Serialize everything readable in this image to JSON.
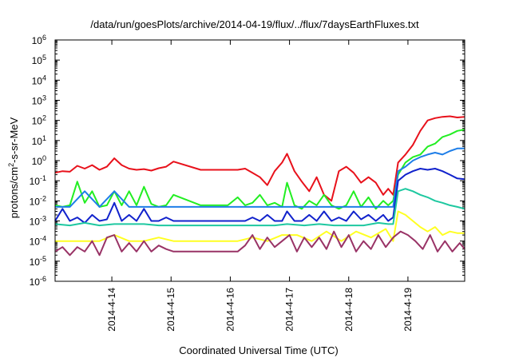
{
  "chart_data": {
    "type": "line",
    "title": "/data/run/goesPlots/archive/2014-04-19/flux/../flux/7daysEarthFluxes.txt",
    "xlabel": "Coordinated Universal Time (UTC)",
    "ylabel_main": "protons/cm",
    "ylabel_sup": "2",
    "ylabel_rest": "-s-sr-MeV",
    "y_scale": "log",
    "ylim_exp": [
      -6,
      6
    ],
    "xlim": [
      "2014-04-13T01:00",
      "2014-04-19T23:00"
    ],
    "x_ticks": [
      {
        "x": "2014-04-14T00:00",
        "label": "2014-4-14"
      },
      {
        "x": "2014-04-15T00:00",
        "label": "2014-4-15"
      },
      {
        "x": "2014-04-16T00:00",
        "label": "2014-4-16"
      },
      {
        "x": "2014-04-17T00:00",
        "label": "2014-4-17"
      },
      {
        "x": "2014-04-18T00:00",
        "label": "2014-4-18"
      },
      {
        "x": "2014-04-19T00:00",
        "label": "2014-4-19"
      }
    ],
    "y_ticks": [
      {
        "exp": -6,
        "label": "10",
        "sup": "-6"
      },
      {
        "exp": -5,
        "label": "10",
        "sup": "-5"
      },
      {
        "exp": -4,
        "label": "10",
        "sup": "-4"
      },
      {
        "exp": -3,
        "label": "10",
        "sup": "-3"
      },
      {
        "exp": -2,
        "label": "10",
        "sup": "-2"
      },
      {
        "exp": -1,
        "label": "10",
        "sup": "-1"
      },
      {
        "exp": 0,
        "label": "10",
        "sup": "0"
      },
      {
        "exp": 1,
        "label": "10",
        "sup": "1"
      },
      {
        "exp": 2,
        "label": "10",
        "sup": "2"
      },
      {
        "exp": 3,
        "label": "10",
        "sup": "3"
      },
      {
        "exp": 4,
        "label": "10",
        "sup": "4"
      },
      {
        "exp": 5,
        "label": "10",
        "sup": "5"
      },
      {
        "exp": 6,
        "label": "10",
        "sup": "6"
      }
    ],
    "grid": false,
    "legend": "none",
    "series": [
      {
        "color": "#e8111b",
        "x": [
          "2014-04-13T01:00",
          "2014-04-13T04:00",
          "2014-04-13T07:00",
          "2014-04-13T10:00",
          "2014-04-13T13:00",
          "2014-04-13T16:00",
          "2014-04-13T19:00",
          "2014-04-13T22:00",
          "2014-04-14T01:00",
          "2014-04-14T04:00",
          "2014-04-14T07:00",
          "2014-04-14T10:00",
          "2014-04-14T13:00",
          "2014-04-14T16:00",
          "2014-04-14T19:00",
          "2014-04-14T22:00",
          "2014-04-15T01:00",
          "2014-04-15T12:00",
          "2014-04-15T23:00",
          "2014-04-16T03:00",
          "2014-04-16T06:00",
          "2014-04-16T09:00",
          "2014-04-16T12:00",
          "2014-04-16T15:00",
          "2014-04-16T18:00",
          "2014-04-16T21:00",
          "2014-04-16T23:00",
          "2014-04-17T02:00",
          "2014-04-17T05:00",
          "2014-04-17T08:00",
          "2014-04-17T11:00",
          "2014-04-17T14:00",
          "2014-04-17T17:00",
          "2014-04-17T20:00",
          "2014-04-17T23:00",
          "2014-04-18T02:00",
          "2014-04-18T05:00",
          "2014-04-18T08:00",
          "2014-04-18T11:00",
          "2014-04-18T14:00",
          "2014-04-18T16:00",
          "2014-04-18T18:00",
          "2014-04-18T20:00",
          "2014-04-18T23:00",
          "2014-04-19T02:00",
          "2014-04-19T05:00",
          "2014-04-19T08:00",
          "2014-04-19T11:00",
          "2014-04-19T14:00",
          "2014-04-19T17:00",
          "2014-04-19T20:00",
          "2014-04-19T23:00"
        ],
        "values": [
          0.25,
          0.3,
          0.28,
          0.55,
          0.4,
          0.6,
          0.35,
          0.5,
          1.3,
          0.6,
          0.4,
          0.35,
          0.38,
          0.32,
          0.42,
          0.5,
          0.9,
          0.35,
          0.35,
          0.35,
          0.4,
          0.25,
          0.15,
          0.06,
          0.3,
          0.8,
          2.2,
          0.3,
          0.09,
          0.03,
          0.15,
          0.02,
          0.01,
          0.3,
          0.5,
          0.25,
          0.08,
          0.15,
          0.08,
          0.02,
          0.04,
          0.02,
          0.8,
          2,
          6,
          30,
          100,
          130,
          150,
          160,
          140,
          150
        ]
      },
      {
        "color": "#22ee22",
        "x": [
          "2014-04-13T01:00",
          "2014-04-13T04:00",
          "2014-04-13T07:00",
          "2014-04-13T10:00",
          "2014-04-13T13:00",
          "2014-04-13T16:00",
          "2014-04-13T19:00",
          "2014-04-13T22:00",
          "2014-04-14T01:00",
          "2014-04-14T04:00",
          "2014-04-14T07:00",
          "2014-04-14T10:00",
          "2014-04-14T13:00",
          "2014-04-14T16:00",
          "2014-04-14T19:00",
          "2014-04-14T22:00",
          "2014-04-15T01:00",
          "2014-04-15T12:00",
          "2014-04-15T23:00",
          "2014-04-16T03:00",
          "2014-04-16T06:00",
          "2014-04-16T09:00",
          "2014-04-16T12:00",
          "2014-04-16T15:00",
          "2014-04-16T18:00",
          "2014-04-16T21:00",
          "2014-04-16T23:00",
          "2014-04-17T02:00",
          "2014-04-17T05:00",
          "2014-04-17T08:00",
          "2014-04-17T11:00",
          "2014-04-17T14:00",
          "2014-04-17T17:00",
          "2014-04-17T20:00",
          "2014-04-17T23:00",
          "2014-04-18T02:00",
          "2014-04-18T05:00",
          "2014-04-18T08:00",
          "2014-04-18T11:00",
          "2014-04-18T14:00",
          "2014-04-18T16:00",
          "2014-04-18T18:00",
          "2014-04-18T20:00",
          "2014-04-18T23:00",
          "2014-04-19T02:00",
          "2014-04-19T05:00",
          "2014-04-19T08:00",
          "2014-04-19T11:00",
          "2014-04-19T14:00",
          "2014-04-19T17:00",
          "2014-04-19T20:00",
          "2014-04-19T23:00"
        ],
        "values": [
          0.006,
          0.005,
          0.006,
          0.09,
          0.008,
          0.03,
          0.005,
          0.006,
          0.03,
          0.006,
          0.03,
          0.006,
          0.05,
          0.007,
          0.005,
          0.006,
          0.02,
          0.006,
          0.006,
          0.015,
          0.006,
          0.008,
          0.02,
          0.006,
          0.008,
          0.005,
          0.08,
          0.006,
          0.004,
          0.01,
          0.006,
          0.02,
          0.006,
          0.004,
          0.006,
          0.03,
          0.005,
          0.015,
          0.004,
          0.01,
          0.006,
          0.01,
          0.2,
          0.8,
          1.5,
          2,
          5,
          7,
          15,
          20,
          30,
          35
        ]
      },
      {
        "color": "#1e7ee8",
        "x": [
          "2014-04-13T01:00",
          "2014-04-13T07:00",
          "2014-04-13T13:00",
          "2014-04-13T19:00",
          "2014-04-14T01:00",
          "2014-04-14T07:00",
          "2014-04-14T13:00",
          "2014-04-14T19:00",
          "2014-04-15T01:00",
          "2014-04-15T12:00",
          "2014-04-15T23:00",
          "2014-04-16T06:00",
          "2014-04-16T12:00",
          "2014-04-16T18:00",
          "2014-04-16T23:00",
          "2014-04-17T06:00",
          "2014-04-17T12:00",
          "2014-04-17T18:00",
          "2014-04-17T23:00",
          "2014-04-18T06:00",
          "2014-04-18T12:00",
          "2014-04-18T16:00",
          "2014-04-18T18:00",
          "2014-04-18T20:00",
          "2014-04-18T23:00",
          "2014-04-19T02:00",
          "2014-04-19T05:00",
          "2014-04-19T08:00",
          "2014-04-19T11:00",
          "2014-04-19T14:00",
          "2014-04-19T17:00",
          "2014-04-19T20:00",
          "2014-04-19T23:00"
        ],
        "values": [
          0.005,
          0.005,
          0.03,
          0.005,
          0.03,
          0.005,
          0.005,
          0.005,
          0.005,
          0.005,
          0.005,
          0.005,
          0.005,
          0.005,
          0.005,
          0.005,
          0.005,
          0.005,
          0.005,
          0.005,
          0.005,
          0.005,
          0.005,
          0.3,
          0.5,
          1,
          1.5,
          2,
          2.5,
          2,
          3,
          4,
          4
        ]
      },
      {
        "color": "#1122cc",
        "x": [
          "2014-04-13T01:00",
          "2014-04-13T04:00",
          "2014-04-13T07:00",
          "2014-04-13T10:00",
          "2014-04-13T13:00",
          "2014-04-13T16:00",
          "2014-04-13T19:00",
          "2014-04-13T22:00",
          "2014-04-14T01:00",
          "2014-04-14T04:00",
          "2014-04-14T07:00",
          "2014-04-14T10:00",
          "2014-04-14T13:00",
          "2014-04-14T16:00",
          "2014-04-14T19:00",
          "2014-04-14T22:00",
          "2014-04-15T01:00",
          "2014-04-15T12:00",
          "2014-04-15T23:00",
          "2014-04-16T03:00",
          "2014-04-16T06:00",
          "2014-04-16T09:00",
          "2014-04-16T12:00",
          "2014-04-16T15:00",
          "2014-04-16T18:00",
          "2014-04-16T21:00",
          "2014-04-16T23:00",
          "2014-04-17T02:00",
          "2014-04-17T05:00",
          "2014-04-17T08:00",
          "2014-04-17T11:00",
          "2014-04-17T14:00",
          "2014-04-17T17:00",
          "2014-04-17T20:00",
          "2014-04-17T23:00",
          "2014-04-18T02:00",
          "2014-04-18T05:00",
          "2014-04-18T08:00",
          "2014-04-18T11:00",
          "2014-04-18T14:00",
          "2014-04-18T16:00",
          "2014-04-18T18:00",
          "2014-04-18T20:00",
          "2014-04-18T23:00",
          "2014-04-19T02:00",
          "2014-04-19T05:00",
          "2014-04-19T08:00",
          "2014-04-19T11:00",
          "2014-04-19T14:00",
          "2014-04-19T17:00",
          "2014-04-19T20:00",
          "2014-04-19T23:00"
        ],
        "values": [
          0.001,
          0.004,
          0.001,
          0.0015,
          0.0008,
          0.002,
          0.001,
          0.0012,
          0.008,
          0.001,
          0.002,
          0.001,
          0.004,
          0.001,
          0.001,
          0.0015,
          0.001,
          0.001,
          0.001,
          0.001,
          0.001,
          0.0015,
          0.001,
          0.002,
          0.001,
          0.001,
          0.003,
          0.001,
          0.001,
          0.002,
          0.001,
          0.003,
          0.001,
          0.0015,
          0.001,
          0.003,
          0.0012,
          0.002,
          0.001,
          0.002,
          0.001,
          0.0015,
          0.1,
          0.2,
          0.3,
          0.4,
          0.35,
          0.4,
          0.3,
          0.2,
          0.13,
          0.12
        ]
      },
      {
        "color": "#1ec8a0",
        "x": [
          "2014-04-13T01:00",
          "2014-04-13T07:00",
          "2014-04-13T13:00",
          "2014-04-13T19:00",
          "2014-04-14T01:00",
          "2014-04-14T07:00",
          "2014-04-14T13:00",
          "2014-04-14T19:00",
          "2014-04-15T01:00",
          "2014-04-15T12:00",
          "2014-04-15T23:00",
          "2014-04-16T06:00",
          "2014-04-16T12:00",
          "2014-04-16T18:00",
          "2014-04-16T23:00",
          "2014-04-17T06:00",
          "2014-04-17T12:00",
          "2014-04-17T18:00",
          "2014-04-17T23:00",
          "2014-04-18T06:00",
          "2014-04-18T12:00",
          "2014-04-18T16:00",
          "2014-04-18T18:00",
          "2014-04-18T20:00",
          "2014-04-18T23:00",
          "2014-04-19T02:00",
          "2014-04-19T05:00",
          "2014-04-19T08:00",
          "2014-04-19T11:00",
          "2014-04-19T14:00",
          "2014-04-19T17:00",
          "2014-04-19T20:00",
          "2014-04-19T23:00"
        ],
        "values": [
          0.0007,
          0.0006,
          0.0008,
          0.0006,
          0.0007,
          0.0007,
          0.0007,
          0.0006,
          0.0006,
          0.0006,
          0.0006,
          0.0006,
          0.0006,
          0.0006,
          0.0007,
          0.0006,
          0.0007,
          0.0006,
          0.0006,
          0.0006,
          0.0008,
          0.0007,
          0.0007,
          0.03,
          0.04,
          0.03,
          0.02,
          0.015,
          0.01,
          0.008,
          0.006,
          0.005,
          0.004
        ]
      },
      {
        "color": "#ffff22",
        "x": [
          "2014-04-13T01:00",
          "2014-04-13T07:00",
          "2014-04-13T13:00",
          "2014-04-13T19:00",
          "2014-04-14T01:00",
          "2014-04-14T07:00",
          "2014-04-14T13:00",
          "2014-04-14T19:00",
          "2014-04-15T01:00",
          "2014-04-15T12:00",
          "2014-04-15T23:00",
          "2014-04-16T03:00",
          "2014-04-16T09:00",
          "2014-04-16T15:00",
          "2014-04-16T21:00",
          "2014-04-17T03:00",
          "2014-04-17T09:00",
          "2014-04-17T15:00",
          "2014-04-17T21:00",
          "2014-04-18T03:00",
          "2014-04-18T09:00",
          "2014-04-18T15:00",
          "2014-04-18T18:00",
          "2014-04-18T20:00",
          "2014-04-18T23:00",
          "2014-04-19T02:00",
          "2014-04-19T05:00",
          "2014-04-19T08:00",
          "2014-04-19T11:00",
          "2014-04-19T14:00",
          "2014-04-19T17:00",
          "2014-04-19T20:00",
          "2014-04-19T23:00"
        ],
        "values": [
          0.0001,
          0.0001,
          0.0001,
          0.0001,
          0.0002,
          0.0001,
          0.0001,
          0.00015,
          0.0001,
          0.0001,
          0.0001,
          0.0001,
          0.00015,
          0.0001,
          0.0002,
          0.0002,
          0.0001,
          0.0003,
          0.0001,
          0.0003,
          0.00015,
          0.0004,
          0.0001,
          0.003,
          0.002,
          0.001,
          0.0005,
          0.0003,
          0.0005,
          0.0002,
          0.0003,
          0.00025,
          0.00025
        ]
      },
      {
        "color": "#993366",
        "x": [
          "2014-04-13T01:00",
          "2014-04-13T04:00",
          "2014-04-13T07:00",
          "2014-04-13T10:00",
          "2014-04-13T13:00",
          "2014-04-13T16:00",
          "2014-04-13T19:00",
          "2014-04-13T22:00",
          "2014-04-14T01:00",
          "2014-04-14T04:00",
          "2014-04-14T07:00",
          "2014-04-14T10:00",
          "2014-04-14T13:00",
          "2014-04-14T16:00",
          "2014-04-14T19:00",
          "2014-04-14T22:00",
          "2014-04-15T01:00",
          "2014-04-15T12:00",
          "2014-04-15T23:00",
          "2014-04-16T03:00",
          "2014-04-16T06:00",
          "2014-04-16T09:00",
          "2014-04-16T12:00",
          "2014-04-16T15:00",
          "2014-04-16T18:00",
          "2014-04-16T21:00",
          "2014-04-17T00:00",
          "2014-04-17T03:00",
          "2014-04-17T06:00",
          "2014-04-17T09:00",
          "2014-04-17T12:00",
          "2014-04-17T15:00",
          "2014-04-17T18:00",
          "2014-04-17T21:00",
          "2014-04-18T00:00",
          "2014-04-18T03:00",
          "2014-04-18T06:00",
          "2014-04-18T09:00",
          "2014-04-18T12:00",
          "2014-04-18T15:00",
          "2014-04-18T18:00",
          "2014-04-18T21:00",
          "2014-04-19T00:00",
          "2014-04-19T03:00",
          "2014-04-19T06:00",
          "2014-04-19T09:00",
          "2014-04-19T12:00",
          "2014-04-19T15:00",
          "2014-04-19T18:00",
          "2014-04-19T21:00",
          "2014-04-19T23:00"
        ],
        "values": [
          3e-05,
          5e-05,
          2e-05,
          5e-05,
          3e-05,
          0.0001,
          2e-05,
          0.00015,
          0.0002,
          3e-05,
          8e-05,
          3e-05,
          0.0001,
          3e-05,
          6e-05,
          4e-05,
          3e-05,
          3e-05,
          3e-05,
          3e-05,
          6e-05,
          0.0002,
          4e-05,
          0.00015,
          5e-05,
          0.0001,
          0.0002,
          3e-05,
          0.00015,
          5e-05,
          0.00015,
          4e-05,
          0.0003,
          5e-05,
          0.0002,
          3e-05,
          0.0001,
          4e-05,
          0.0002,
          5e-05,
          0.00015,
          0.0003,
          0.0002,
          0.0001,
          4e-05,
          0.0002,
          3e-05,
          0.0001,
          3e-05,
          8e-05,
          4e-05
        ]
      }
    ]
  }
}
